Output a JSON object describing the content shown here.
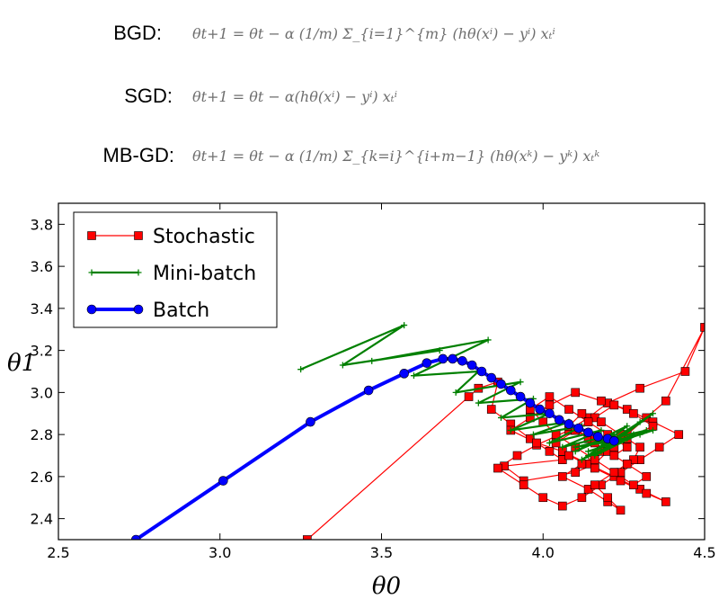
{
  "equations": [
    {
      "label": "BGD:",
      "formula": "θt+1 = θt − α (1/m) Σ_{i=1}^{m} (hθ(xⁱ) − yⁱ) xₜⁱ"
    },
    {
      "label": "SGD:",
      "formula": "θt+1 = θt − α(hθ(xⁱ) − yⁱ) xₜⁱ"
    },
    {
      "label": "MB-GD:",
      "formula": "θt+1 = θt − α (1/m) Σ_{k=i}^{i+m−1} (hθ(xᵏ) − yᵏ) xₜᵏ"
    }
  ],
  "chart_data": {
    "type": "line",
    "title": "",
    "xlabel": "θ0",
    "ylabel": "θ1",
    "xlim": [
      2.5,
      4.5
    ],
    "ylim": [
      2.3,
      3.9
    ],
    "xticks": [
      "2.5",
      "3.0",
      "3.5",
      "4.0",
      "4.5"
    ],
    "yticks": [
      "2.4",
      "2.6",
      "2.8",
      "3.0",
      "3.2",
      "3.4",
      "3.6",
      "3.8"
    ],
    "grid": false,
    "legend_position": "top-left",
    "series": [
      {
        "name": "Stochastic",
        "color": "#ff0000",
        "marker": "square",
        "x": [
          3.27,
          3.77,
          3.8,
          3.86,
          3.84,
          3.9,
          3.96,
          4.02,
          4.06,
          3.88,
          3.94,
          4.1,
          4.16,
          4.2,
          4.26,
          4.32,
          4.38,
          4.5,
          4.44,
          4.3,
          4.2,
          4.14,
          4.08,
          3.98,
          3.92,
          3.86,
          3.94,
          4.0,
          4.06,
          4.12,
          4.18,
          4.24,
          4.3,
          4.36,
          4.42,
          4.34,
          4.26,
          4.18,
          4.1,
          4.02,
          3.96,
          3.9,
          3.98,
          4.06,
          4.14,
          4.22,
          4.3,
          4.38,
          4.32,
          4.24,
          4.16,
          4.08,
          4.04,
          4.1,
          4.16,
          4.22,
          4.28,
          4.34,
          4.26,
          4.18,
          4.12,
          4.06,
          4.14,
          4.2,
          4.24,
          4.2,
          4.16,
          4.22,
          4.28,
          4.3,
          4.24,
          4.18,
          4.12,
          4.08,
          4.14,
          4.2,
          4.26,
          4.32,
          4.28,
          4.22,
          4.16,
          4.1,
          4.04,
          4.0,
          3.96,
          4.02,
          4.08,
          4.14,
          4.2,
          4.26,
          4.22,
          4.16,
          4.1,
          4.16,
          4.22
        ],
        "y": [
          2.3,
          2.98,
          3.02,
          3.05,
          2.92,
          2.85,
          2.78,
          2.72,
          2.68,
          2.65,
          2.58,
          2.62,
          2.66,
          2.72,
          2.8,
          2.88,
          2.96,
          3.31,
          3.1,
          3.02,
          2.95,
          2.88,
          2.82,
          2.75,
          2.7,
          2.64,
          2.56,
          2.5,
          2.46,
          2.5,
          2.56,
          2.62,
          2.68,
          2.74,
          2.8,
          2.86,
          2.92,
          2.96,
          3.0,
          2.94,
          2.88,
          2.82,
          2.76,
          2.72,
          2.66,
          2.6,
          2.54,
          2.48,
          2.52,
          2.58,
          2.64,
          2.7,
          2.76,
          2.82,
          2.88,
          2.94,
          2.9,
          2.84,
          2.78,
          2.72,
          2.66,
          2.6,
          2.54,
          2.48,
          2.44,
          2.5,
          2.56,
          2.62,
          2.68,
          2.74,
          2.8,
          2.86,
          2.9,
          2.84,
          2.78,
          2.72,
          2.66,
          2.6,
          2.56,
          2.62,
          2.68,
          2.74,
          2.8,
          2.86,
          2.92,
          2.98,
          2.92,
          2.86,
          2.8,
          2.74,
          2.7,
          2.76,
          2.82,
          2.78,
          2.74
        ]
      },
      {
        "name": "Mini-batch",
        "color": "#008000",
        "marker": "plus",
        "x": [
          3.25,
          3.57,
          3.38,
          3.68,
          3.47,
          3.83,
          3.6,
          3.8,
          3.73,
          3.93,
          3.8,
          3.97,
          3.87,
          4.02,
          3.9,
          4.08,
          3.97,
          4.12,
          4.02,
          4.18,
          4.06,
          4.22,
          4.1,
          4.26,
          4.14,
          4.3,
          4.18,
          4.34,
          4.12,
          4.28,
          4.16,
          4.32,
          4.1,
          4.26,
          4.14,
          4.3,
          4.18,
          4.34,
          4.2,
          4.24
        ],
        "y": [
          3.11,
          3.32,
          3.13,
          3.2,
          3.15,
          3.25,
          3.08,
          3.1,
          3.0,
          3.05,
          2.95,
          2.97,
          2.88,
          2.9,
          2.82,
          2.86,
          2.8,
          2.84,
          2.76,
          2.82,
          2.74,
          2.8,
          2.72,
          2.84,
          2.7,
          2.86,
          2.72,
          2.9,
          2.68,
          2.8,
          2.7,
          2.82,
          2.74,
          2.78,
          2.72,
          2.8,
          2.74,
          2.82,
          2.76,
          2.77
        ]
      },
      {
        "name": "Batch",
        "color": "#0000ff",
        "marker": "circle",
        "x": [
          2.74,
          3.01,
          3.28,
          3.46,
          3.57,
          3.64,
          3.69,
          3.72,
          3.75,
          3.78,
          3.81,
          3.84,
          3.87,
          3.9,
          3.93,
          3.96,
          3.99,
          4.02,
          4.05,
          4.08,
          4.11,
          4.14,
          4.17,
          4.2,
          4.22
        ],
        "y": [
          2.3,
          2.58,
          2.86,
          3.01,
          3.09,
          3.14,
          3.16,
          3.16,
          3.15,
          3.13,
          3.1,
          3.07,
          3.04,
          3.01,
          2.98,
          2.95,
          2.92,
          2.9,
          2.87,
          2.85,
          2.83,
          2.81,
          2.79,
          2.78,
          2.77
        ]
      }
    ]
  }
}
